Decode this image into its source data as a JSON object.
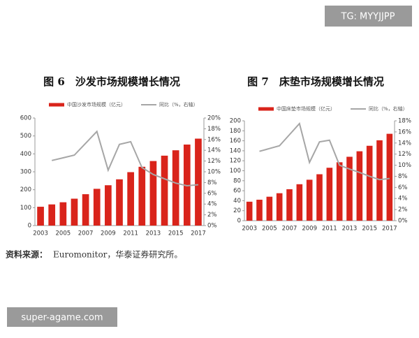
{
  "watermark_top": "TG: MYYJJPP",
  "watermark_bottom": "super-agame.com",
  "source": {
    "label": "资料来源：",
    "text": "Euromonitor，华泰证券研究所。"
  },
  "chart_data": [
    {
      "type": "bar-line",
      "title": "图 6　沙发市场规模增长情况",
      "categories": [
        "2003",
        null,
        "2005",
        null,
        "2007",
        null,
        "2009",
        null,
        "2011",
        null,
        "2013",
        null,
        "2015",
        null,
        "2017"
      ],
      "series": [
        {
          "name": "中国沙发市场规模（亿元）",
          "color": "#d9241b",
          "values": [
            105,
            118,
            130,
            150,
            175,
            205,
            225,
            258,
            298,
            328,
            360,
            390,
            420,
            452,
            485
          ]
        },
        {
          "name": "同比（%，右轴）",
          "color": "#a6a6a6",
          "axis": "y2",
          "values": [
            null,
            12.1,
            12.6,
            13.1,
            15.3,
            17.5,
            10.3,
            15.1,
            15.6,
            10.8,
            9.5,
            8.7,
            7.9,
            7.4,
            7.6
          ]
        }
      ],
      "ylim": [
        0,
        600
      ],
      "yticks": [
        0,
        100,
        200,
        300,
        400,
        500,
        600
      ],
      "y2lim": [
        0,
        20
      ],
      "y2ticks": [
        {
          "value": 0,
          "label": "0%"
        },
        {
          "value": 2,
          "label": "2%"
        },
        {
          "value": 4,
          "label": "4%"
        },
        {
          "value": 6,
          "label": "6%"
        },
        {
          "value": 8,
          "label": "8%"
        },
        {
          "value": 10,
          "label": "10%"
        },
        {
          "value": 12,
          "label": "12%"
        },
        {
          "value": 14,
          "label": "14%"
        },
        {
          "value": 16,
          "label": "16%"
        },
        {
          "value": 18,
          "label": "18%"
        },
        {
          "value": 20,
          "label": "20%"
        }
      ],
      "grid": false
    },
    {
      "type": "bar-line",
      "title": "图 7　床垫市场规模增长情况",
      "categories": [
        "2003",
        null,
        "2005",
        null,
        "2007",
        null,
        "2009",
        null,
        "2011",
        null,
        "2013",
        null,
        "2015",
        null,
        "2017"
      ],
      "series": [
        {
          "name": "中国床垫市场规模（亿元）",
          "color": "#d9241b",
          "values": [
            38,
            42,
            48,
            55,
            63,
            73,
            82,
            93,
            106,
            117,
            128,
            139,
            150,
            161,
            174
          ]
        },
        {
          "name": "同比（%，右轴）",
          "color": "#a6a6a6",
          "axis": "y2",
          "values": [
            null,
            12.5,
            13,
            13.5,
            15.5,
            17.5,
            10.5,
            14.2,
            14.5,
            10,
            9.3,
            8.7,
            8,
            7.4,
            7.6
          ]
        }
      ],
      "ylim": [
        0,
        200
      ],
      "yticks": [
        0,
        20,
        40,
        60,
        80,
        100,
        120,
        140,
        160,
        180,
        200
      ],
      "y2lim": [
        0,
        18
      ],
      "y2ticks": [
        {
          "value": 0,
          "label": "0%"
        },
        {
          "value": 2,
          "label": "2%"
        },
        {
          "value": 4,
          "label": "4%"
        },
        {
          "value": 6,
          "label": "6%"
        },
        {
          "value": 8,
          "label": "8%"
        },
        {
          "value": 10,
          "label": "10%"
        },
        {
          "value": 12,
          "label": "12%"
        },
        {
          "value": 14,
          "label": "14%"
        },
        {
          "value": 16,
          "label": "16%"
        },
        {
          "value": 18,
          "label": "18%"
        }
      ],
      "grid": false
    }
  ]
}
